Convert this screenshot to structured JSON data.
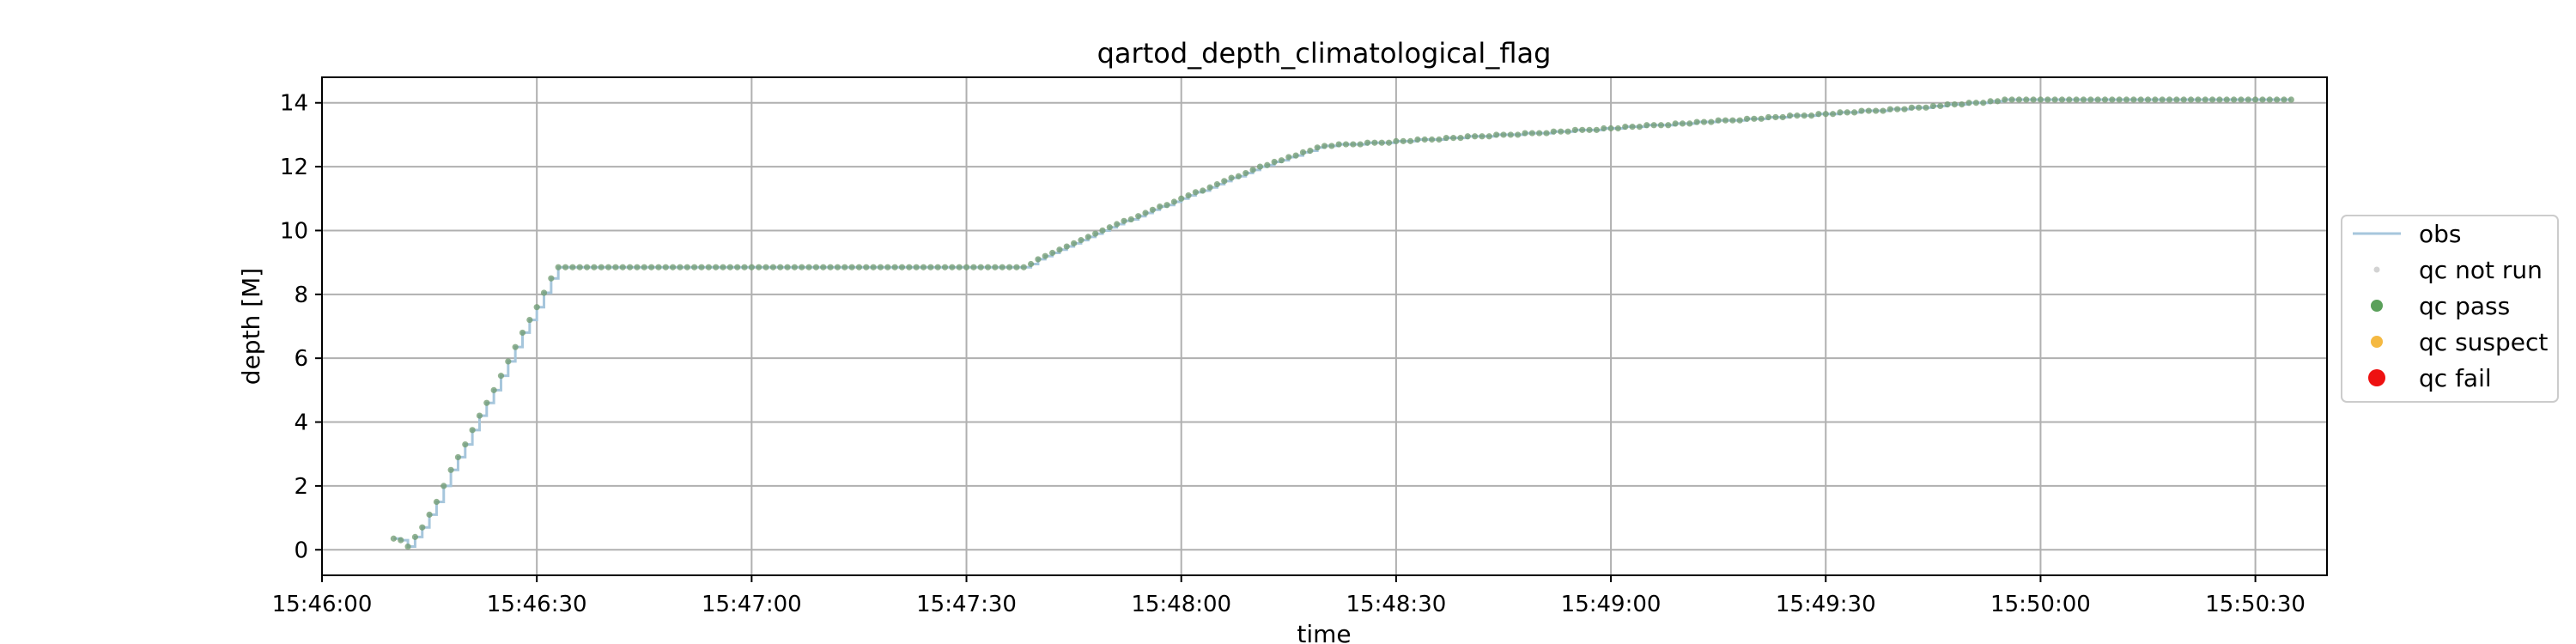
{
  "chart_data": {
    "type": "scatter",
    "title": "qartod_depth_climatological_flag",
    "xlabel": "time",
    "ylabel": "depth [M]",
    "x_ticks": [
      "15:46:00",
      "15:46:30",
      "15:47:00",
      "15:47:30",
      "15:48:00",
      "15:48:30",
      "15:49:00",
      "15:49:30",
      "15:50:00",
      "15:50:30"
    ],
    "y_ticks": [
      0,
      2,
      4,
      6,
      8,
      10,
      12,
      14
    ],
    "xlim": [
      "15:46:00",
      "15:50:40"
    ],
    "ylim": [
      -0.8,
      14.8
    ],
    "grid": true,
    "legend_position": "center-right, outside axes",
    "legend": [
      {
        "name": "obs",
        "marker": "line",
        "color": "#a6c6dc"
      },
      {
        "name": "qc not run",
        "marker": "dot-small",
        "color": "#d3d3d3"
      },
      {
        "name": "qc pass",
        "marker": "dot",
        "color": "#5aa05a"
      },
      {
        "name": "qc suspect",
        "marker": "dot",
        "color": "#f5b942"
      },
      {
        "name": "qc fail",
        "marker": "dot-large",
        "color": "#ee1111"
      }
    ],
    "series": [
      {
        "name": "obs",
        "points": [
          [
            "15:46:10",
            0.35
          ],
          [
            "15:46:11",
            0.3
          ],
          [
            "15:46:12",
            0.1
          ],
          [
            "15:46:14",
            0.7
          ],
          [
            "15:46:16",
            1.5
          ],
          [
            "15:46:18",
            2.5
          ],
          [
            "15:46:20",
            3.3
          ],
          [
            "15:46:22",
            4.2
          ],
          [
            "15:46:24",
            5.0
          ],
          [
            "15:46:26",
            5.9
          ],
          [
            "15:46:28",
            6.8
          ],
          [
            "15:46:30",
            7.6
          ],
          [
            "15:46:32",
            8.5
          ],
          [
            "15:46:33",
            8.85
          ],
          [
            "15:47:00",
            8.85
          ],
          [
            "15:47:30",
            8.85
          ],
          [
            "15:47:38",
            8.85
          ],
          [
            "15:47:42",
            9.3
          ],
          [
            "15:47:50",
            10.1
          ],
          [
            "15:48:00",
            11.0
          ],
          [
            "15:48:10",
            11.9
          ],
          [
            "15:48:20",
            12.65
          ],
          [
            "15:48:30",
            12.78
          ],
          [
            "15:48:40",
            12.93
          ],
          [
            "15:48:50",
            13.05
          ],
          [
            "15:49:00",
            13.2
          ],
          [
            "15:49:10",
            13.35
          ],
          [
            "15:49:20",
            13.5
          ],
          [
            "15:49:30",
            13.65
          ],
          [
            "15:49:40",
            13.8
          ],
          [
            "15:49:50",
            13.98
          ],
          [
            "15:49:55",
            14.08
          ],
          [
            "15:50:10",
            14.1
          ],
          [
            "15:50:20",
            14.1
          ],
          [
            "15:50:35",
            14.08
          ]
        ]
      }
    ],
    "point_style": {
      "flag": "qc pass",
      "sampling_interval_seconds": 1
    }
  }
}
